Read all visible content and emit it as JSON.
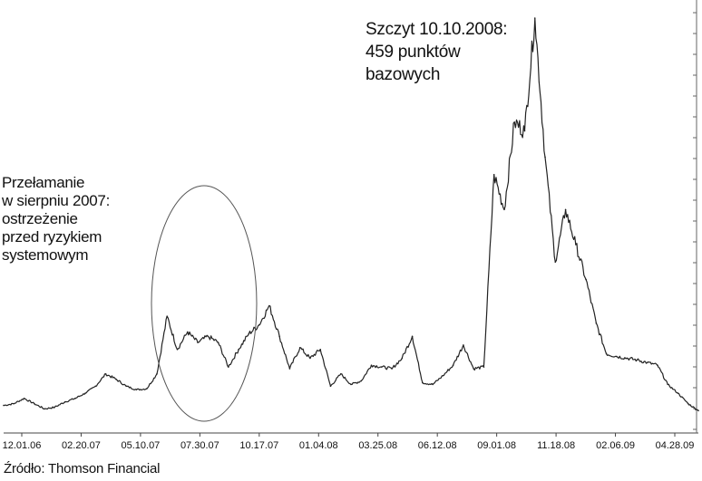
{
  "chart_data": {
    "type": "line",
    "title": "",
    "xlabel": "",
    "ylabel": "",
    "grid": false,
    "x_ticks": [
      "12.01.06",
      "02.20.07",
      "05.10.07",
      "07.30.07",
      "10.17.07",
      "01.04.08",
      "03.25.08",
      "06.12.08",
      "09.01.08",
      "11.18.08",
      "02.06.09",
      "04.28.09"
    ],
    "x": [
      "12.01.06",
      "12.20.06",
      "01.10.07",
      "01.30.07",
      "02.20.07",
      "03.10.07",
      "03.30.07",
      "04.20.07",
      "05.10.07",
      "05.25.07",
      "06.10.07",
      "06.25.07",
      "07.10.07",
      "07.20.07",
      "07.30.07",
      "08.05.07",
      "08.09.07",
      "08.15.07",
      "08.20.07",
      "08.28.07",
      "09.05.07",
      "09.15.07",
      "09.25.07",
      "10.05.07",
      "10.17.07",
      "11.01.07",
      "11.15.07",
      "11.28.07",
      "12.10.07",
      "12.20.07",
      "01.04.08",
      "01.20.08",
      "02.05.08",
      "02.20.08",
      "03.05.08",
      "03.18.08",
      "03.25.08",
      "04.10.08",
      "04.25.08",
      "05.10.08",
      "05.25.08",
      "06.12.08",
      "06.25.08",
      "07.10.08",
      "07.25.08",
      "08.10.08",
      "08.25.08",
      "09.01.08",
      "09.15.08",
      "09.22.08",
      "09.30.08",
      "10.05.08",
      "10.10.08",
      "10.17.08",
      "10.27.08",
      "11.05.08",
      "11.18.08",
      "12.05.08",
      "12.20.08",
      "01.05.09",
      "01.20.09",
      "02.06.09",
      "02.25.09",
      "03.15.09",
      "04.01.09",
      "04.15.09",
      "04.28.09",
      "05.10.09",
      "05.25.09"
    ],
    "series": [
      {
        "values": [
          16,
          18,
          24,
          18,
          12,
          14,
          20,
          24,
          30,
          38,
          52,
          46,
          38,
          34,
          35,
          52,
          118,
          80,
          100,
          88,
          95,
          88,
          60,
          80,
          98,
          108,
          130,
          95,
          58,
          82,
          70,
          80,
          38,
          52,
          40,
          44,
          62,
          60,
          58,
          70,
          95,
          42,
          40,
          50,
          62,
          85,
          58,
          60,
          280,
          240,
          340,
          330,
          459,
          300,
          180,
          240,
          200,
          160,
          110,
          75,
          72,
          70,
          68,
          65,
          62,
          40,
          30,
          18,
          10
        ]
      }
    ],
    "annotations": [
      {
        "id": "peak",
        "lines": [
          "Szczyt 10.10.2008:",
          "459 punktów",
          "bazowych"
        ]
      },
      {
        "id": "break",
        "lines": [
          "Przełamanie",
          "w sierpniu 2007:",
          "ostrzeżenie",
          "przed ryzykiem",
          "systemowym"
        ]
      }
    ],
    "source": "Źródło: Thomson Financial",
    "line_color": "#222222"
  }
}
